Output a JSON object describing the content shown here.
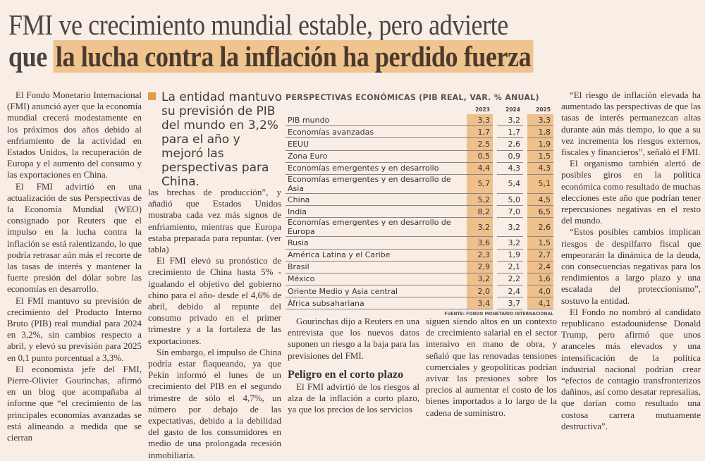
{
  "headline": {
    "line1": "FMI ve crecimiento mundial estable, pero advierte",
    "line2_prefix": "que",
    "line2_highlight": "la lucha contra la inflación ha perdido fuerza"
  },
  "pull_quote": "La entidad mantuvo su previsión de PIB del mundo en 3,2% para el año y mejoró las perspectivas para China.",
  "col1": [
    "El Fondo Monetario Internacional (FMI) anunció ayer que la economía mundial crecerá modestamente en los próximos dos años debido al enfriamiento de la actividad en Estados Unidos, la recuperación de Europa y el aumento del consumo y las exportaciones en China.",
    "El FMI advirtió en una actualización de sus Perspectivas de la Economía Mundial (WEO) consignado por Reuters que el impulso en la lucha contra la inflación se está ralentizando, lo que podría retrasar aún más el recorte de las tasas de interés y mantener la fuerte presión del dólar sobre las economías en desarrollo.",
    "El FMI mantuvo su previsión de crecimiento del Producto Interno Bruto (PIB) real mundial para 2024 en 3,2%, sin cambios respecto a abril, y elevó su previsión para 2025 en 0,1 punto porcentual a 3,3%.",
    "El economista jefe del FMI, Pierre-Olivier Gourinchas, afirmó en un blog que acompañaba al informe que “el crecimiento de las principales economías avanzadas se está alineando a medida que se cierran"
  ],
  "col2": [
    "las brechas de producción”, y añadió que Estados Unidos mostraba cada vez más signos de enfriamiento, mientras que Europa estaba preparada para repuntar. (ver tabla)",
    "El FMI elevó su pronóstico de crecimiento de China hasta 5% -igualando el objetivo del gobierno chino para el año- desde el 4,6% de abril, debido al repunte del consumo privado en el primer trimestre y a la fortaleza de las exportaciones.",
    "Sin embargo, el impulso de China podría estar flaqueando, ya que Pekín informó el lunes de un crecimiento del PIB en el segundo trimestre de sólo el 4,7%, un número por debajo de las expectativas, debido a la debilidad del gasto de los consumidores en medio de una prolongada recesión inmobiliaria."
  ],
  "table": {
    "title": "PERSPECTIVAS ECONÓMICAS (PIB REAL, VAR. % ANUAL)",
    "years": [
      "2023",
      "2024",
      "2025"
    ],
    "rows": [
      [
        "PIB mundo",
        "3,3",
        "3,2",
        "3,3"
      ],
      [
        "Economías avanzadas",
        "1,7",
        "1,7",
        "1,8"
      ],
      [
        "EEUU",
        "2,5",
        "2,6",
        "1,9"
      ],
      [
        "Zona Euro",
        "0,5",
        "0,9",
        "1,5"
      ],
      [
        "Economías emergentes y en desarrollo",
        "4,4",
        "4,3",
        "4,3"
      ],
      [
        "Economías emergentes y en desarrollo de Asia",
        "5,7",
        "5,4",
        "5,1"
      ],
      [
        "China",
        "5,2",
        "5,0",
        "4,5"
      ],
      [
        "India",
        "8,2",
        "7,0",
        "6,5"
      ],
      [
        "Economías emergentes y en desarrollo de Europa",
        "3,2",
        "3,2",
        "2,6"
      ],
      [
        "Rusia",
        "3,6",
        "3,2",
        "1,5"
      ],
      [
        "América Latina y el Caribe",
        "2,3",
        "1,9",
        "2,7"
      ],
      [
        "Brasil",
        "2,9",
        "2,1",
        "2,4"
      ],
      [
        "México",
        "3,2",
        "2,2",
        "1,6"
      ],
      [
        "Oriente Medio y Asia central",
        "2,0",
        "2,4",
        "4,0"
      ],
      [
        "África subsahariana",
        "3,4",
        "3,7",
        "4,1"
      ]
    ],
    "source": "FUENTE: FONDO MONETARIO INTERNACIONAL",
    "highlight_color": "#efc08c"
  },
  "col3a": {
    "p1": "Gourinchas dijo a Reuters en una entrevista que los nuevos datos suponen un riesgo a la baja para las previsiones del FMI.",
    "subhead": "Peligro en el corto plazo",
    "p2": "El FMI advirtió de los riesgos al alza de la inflación a corto plazo, ya que los precios de los servicios"
  },
  "col3b": "siguen siendo altos en un contexto de crecimiento salarial en el sector intensivo en mano de obra, y señaló que las renovadas tensiones comerciales y geopolíticas podrían avivar las presiones sobre los precios al aumentar el costo de los bienes importados a lo largo de la cadena de suministro.",
  "col4": [
    "“El riesgo de inflación elevada ha aumentado las perspectivas de que las tasas de interés permanezcan altas durante aún más tiempo, lo que a su vez incrementa los riesgos externos, fiscales y financieros”, señaló el FMI.",
    "El organismo también alertó de posibles giros en la política económica como resultado de muchas elecciones este año que podrían tener repercusiones negativas en el resto del mundo.",
    "“Estos posibles cambios implican riesgos de despilfarro fiscal que empeorarán la dinámica de la deuda, con consecuencias negativas para los rendimientos a largo plazo y una escalada del proteccionismo”, sostuvo la entidad.",
    "El Fondo no nombró al candidato republicano estadounidense Donald Trump, pero afirmó que unos aranceles más elevados y una intensificación de la política industrial nacional podrían crear “efectos de contagio transfronterizos dañinos, así como desatar represalias, que darían como resultado una costosa carrera mutuamente destructiva”."
  ]
}
